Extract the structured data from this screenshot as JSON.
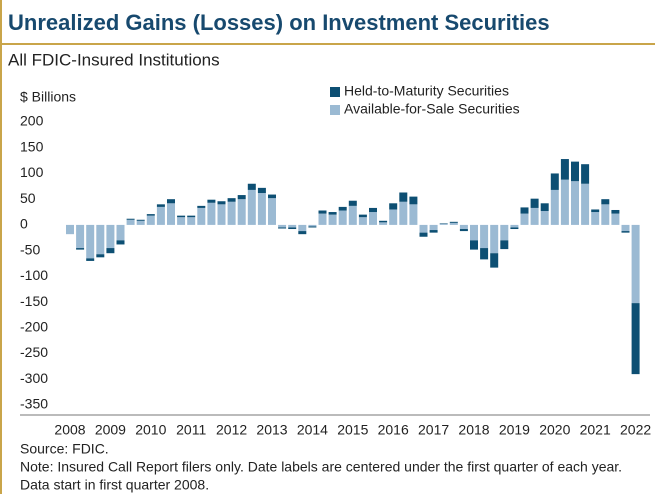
{
  "chart_data": {
    "type": "stacked_bar",
    "title": "Unrealized Gains (Losses) on Investment Securities",
    "subtitle": "All FDIC-Insured Institutions",
    "y_label": "$ Billions",
    "source": "Source: FDIC.",
    "notes": [
      "Note: Insured Call Report filers only. Date labels are centered under the first quarter of each year.",
      "Data start in first quarter 2008."
    ],
    "legend": "top",
    "categories": [
      "2008",
      null,
      null,
      null,
      "2009",
      null,
      null,
      null,
      "2010",
      null,
      null,
      null,
      "2011",
      null,
      null,
      null,
      "2012",
      null,
      null,
      null,
      "2013",
      null,
      null,
      null,
      "2014",
      null,
      null,
      null,
      "2015",
      null,
      null,
      null,
      "2016",
      null,
      null,
      null,
      "2017",
      null,
      null,
      null,
      "2018",
      null,
      null,
      null,
      "2019",
      null,
      null,
      null,
      "2020",
      null,
      null,
      null,
      "2021",
      null,
      null,
      null,
      "2022"
    ],
    "series": [
      {
        "name": "Held-to-Maturity Securities",
        "color": "#0d4f73",
        "values": [
          0,
          -3,
          -5,
          -6,
          -10,
          -8,
          2,
          2,
          3,
          5,
          8,
          3,
          3,
          4,
          6,
          6,
          7,
          8,
          12,
          10,
          7,
          -2,
          -3,
          -6,
          -2,
          6,
          5,
          7,
          10,
          5,
          8,
          3,
          12,
          18,
          15,
          -8,
          -5,
          1,
          2,
          -4,
          -18,
          -22,
          -28,
          -17,
          -3,
          12,
          18,
          15,
          32,
          40,
          38,
          38,
          5,
          10,
          7,
          -3,
          -138
        ]
      },
      {
        "name": "Available-for-Sale Securities",
        "color": "#9bbad3",
        "values": [
          -18,
          -45,
          -65,
          -57,
          -45,
          -30,
          10,
          8,
          18,
          35,
          42,
          15,
          15,
          33,
          43,
          40,
          45,
          50,
          68,
          62,
          52,
          -5,
          -5,
          -12,
          -3,
          22,
          20,
          28,
          37,
          15,
          25,
          5,
          30,
          45,
          40,
          -15,
          -10,
          2,
          4,
          -8,
          -30,
          -45,
          -55,
          -30,
          -5,
          22,
          33,
          27,
          68,
          88,
          85,
          80,
          25,
          40,
          22,
          -12,
          -152
        ]
      }
    ],
    "ylim": [
      -360,
      210
    ],
    "yticks": [
      200,
      150,
      100,
      50,
      0,
      -50,
      -100,
      -150,
      -200,
      -250,
      -300,
      -350
    ]
  }
}
